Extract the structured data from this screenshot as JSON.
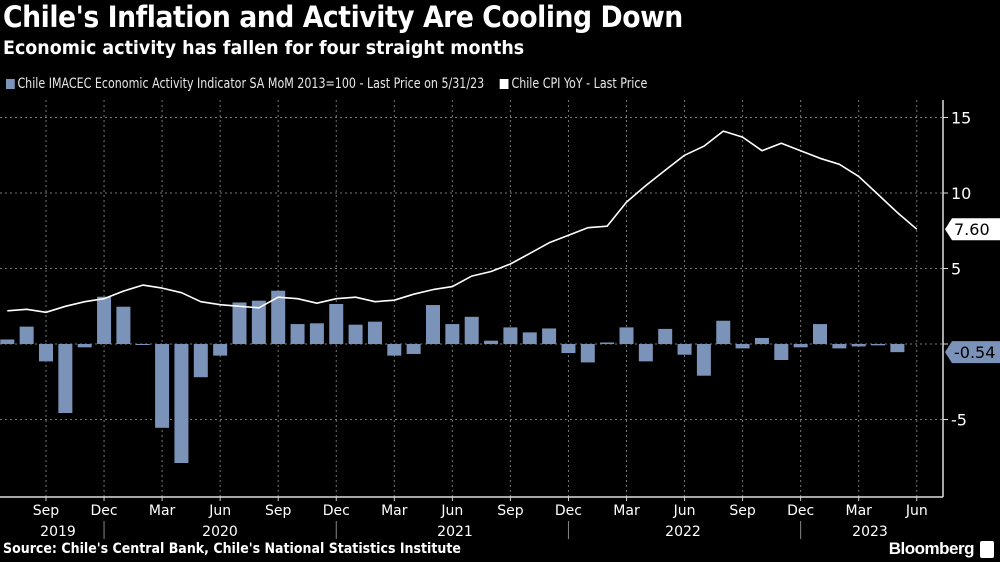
{
  "title": "Chile's Inflation and Activity Are Cooling Down",
  "subtitle": "Economic activity has fallen for four straight months",
  "source": "Source: Chile's Central Bank, Chile's National Statistics Institute",
  "brand": "Bloomberg",
  "chart_data": {
    "type": "bar+line",
    "ylim": [
      -10,
      16
    ],
    "y_ticks": [
      "15",
      "10",
      "5",
      "-5"
    ],
    "y_tick_values": [
      15,
      10,
      5,
      -5
    ],
    "grid": true,
    "legend": "top-left",
    "x_start": "2019-07",
    "x_tick_labels": [
      "Sep",
      "Dec",
      "Mar",
      "Jun",
      "Sep",
      "Dec",
      "Mar",
      "Jun",
      "Sep",
      "Dec",
      "Mar",
      "Jun",
      "Sep",
      "Dec",
      "Mar",
      "Jun"
    ],
    "x_tick_months": [
      "2019-09",
      "2019-12",
      "2020-03",
      "2020-06",
      "2020-09",
      "2020-12",
      "2021-03",
      "2021-06",
      "2021-09",
      "2021-12",
      "2022-03",
      "2022-06",
      "2022-09",
      "2022-12",
      "2023-03",
      "2023-06"
    ],
    "year_labels": [
      "2019",
      "2020",
      "2021",
      "2022",
      "2023"
    ],
    "series": [
      {
        "name": "Chile IMACEC Economic Activity Indicator SA MoM 2013=100 - Last Price on 5/31/23",
        "type": "bar",
        "color": "#7b93b8",
        "last_label": "-0.54",
        "x": [
          "2019-07",
          "2019-08",
          "2019-09",
          "2019-10",
          "2019-11",
          "2019-12",
          "2020-01",
          "2020-02",
          "2020-03",
          "2020-04",
          "2020-05",
          "2020-06",
          "2020-07",
          "2020-08",
          "2020-09",
          "2020-10",
          "2020-11",
          "2020-12",
          "2021-01",
          "2021-02",
          "2021-03",
          "2021-04",
          "2021-05",
          "2021-06",
          "2021-07",
          "2021-08",
          "2021-09",
          "2021-10",
          "2021-11",
          "2021-12",
          "2022-01",
          "2022-02",
          "2022-03",
          "2022-04",
          "2022-05",
          "2022-06",
          "2022-07",
          "2022-08",
          "2022-09",
          "2022-10",
          "2022-11",
          "2022-12",
          "2023-01",
          "2023-02",
          "2023-03",
          "2023-04",
          "2023-05"
        ],
        "values": [
          0.3,
          1.15,
          -1.15,
          -4.57,
          -0.22,
          3.13,
          2.47,
          -0.05,
          -5.55,
          -7.88,
          -2.2,
          -0.77,
          2.75,
          2.87,
          3.53,
          1.32,
          1.37,
          2.65,
          1.28,
          1.48,
          -0.77,
          -0.66,
          2.58,
          1.32,
          1.8,
          0.22,
          1.1,
          0.77,
          1.03,
          -0.6,
          -1.22,
          0.1,
          1.1,
          -1.15,
          1.0,
          -0.71,
          -2.1,
          1.54,
          -0.29,
          0.4,
          -1.06,
          -0.22,
          1.32,
          -0.29,
          -0.16,
          -0.09,
          -0.54
        ]
      },
      {
        "name": "Chile CPI YoY - Last Price",
        "type": "line",
        "color": "#ffffff",
        "last_label": "7.60",
        "x": [
          "2019-07",
          "2019-08",
          "2019-09",
          "2019-10",
          "2019-11",
          "2019-12",
          "2020-01",
          "2020-02",
          "2020-03",
          "2020-04",
          "2020-05",
          "2020-06",
          "2020-07",
          "2020-08",
          "2020-09",
          "2020-10",
          "2020-11",
          "2020-12",
          "2021-01",
          "2021-02",
          "2021-03",
          "2021-04",
          "2021-05",
          "2021-06",
          "2021-07",
          "2021-08",
          "2021-09",
          "2021-10",
          "2021-11",
          "2021-12",
          "2022-01",
          "2022-02",
          "2022-03",
          "2022-04",
          "2022-05",
          "2022-06",
          "2022-07",
          "2022-08",
          "2022-09",
          "2022-10",
          "2022-11",
          "2022-12",
          "2023-01",
          "2023-02",
          "2023-03",
          "2023-04",
          "2023-05",
          "2023-06"
        ],
        "values": [
          2.2,
          2.3,
          2.1,
          2.5,
          2.8,
          3.0,
          3.5,
          3.9,
          3.7,
          3.4,
          2.8,
          2.6,
          2.5,
          2.4,
          3.1,
          3.0,
          2.7,
          3.0,
          3.1,
          2.8,
          2.9,
          3.3,
          3.6,
          3.8,
          4.5,
          4.8,
          5.3,
          6.0,
          6.7,
          7.2,
          7.7,
          7.8,
          9.4,
          10.5,
          11.5,
          12.5,
          13.1,
          14.1,
          13.7,
          12.8,
          13.3,
          12.8,
          12.3,
          11.9,
          11.1,
          9.9,
          8.7,
          7.6
        ]
      }
    ]
  }
}
